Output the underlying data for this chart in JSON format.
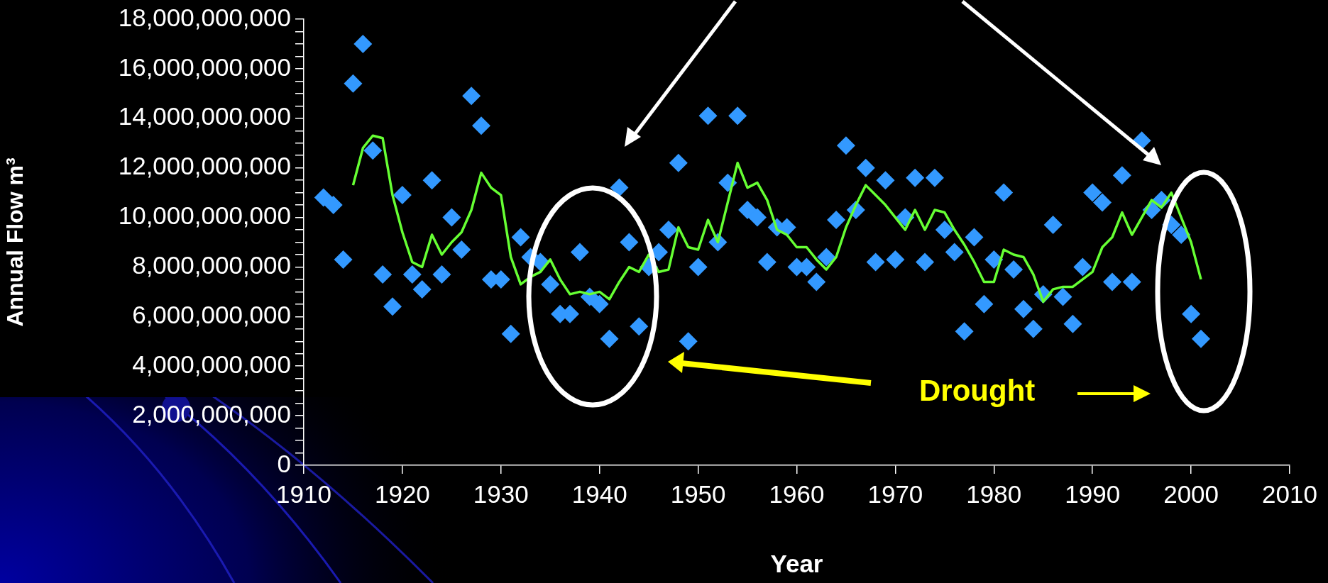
{
  "chart_data": {
    "type": "scatter",
    "xlabel": "Year",
    "ylabel": "Annual Flow m³",
    "annotations": [
      "Drought"
    ],
    "grid": false,
    "legend": false,
    "xlim": [
      1910,
      2010
    ],
    "xticks": [
      1910,
      1920,
      1930,
      1940,
      1950,
      1960,
      1970,
      1980,
      1990,
      2000,
      2010
    ],
    "ylim": [
      0,
      18000000000
    ],
    "yticks": [
      {
        "value": 0,
        "label": "0"
      },
      {
        "value": 500000000,
        "label": null
      },
      {
        "value": 1000000000,
        "label": null
      },
      {
        "value": 1500000000,
        "label": null
      },
      {
        "value": 2000000000,
        "label": "2,000,000,000"
      },
      {
        "value": 2500000000,
        "label": null
      },
      {
        "value": 3000000000,
        "label": null
      },
      {
        "value": 3500000000,
        "label": null
      },
      {
        "value": 4000000000,
        "label": "4,000,000,000"
      },
      {
        "value": 4500000000,
        "label": null
      },
      {
        "value": 5000000000,
        "label": null
      },
      {
        "value": 5500000000,
        "label": null
      },
      {
        "value": 6000000000,
        "label": "6,000,000,000"
      },
      {
        "value": 6500000000,
        "label": null
      },
      {
        "value": 7000000000,
        "label": null
      },
      {
        "value": 7500000000,
        "label": null
      },
      {
        "value": 8000000000,
        "label": "8,000,000,000"
      },
      {
        "value": 8500000000,
        "label": null
      },
      {
        "value": 9000000000,
        "label": null
      },
      {
        "value": 9500000000,
        "label": null
      },
      {
        "value": 10000000000,
        "label": "10,000,000,000"
      },
      {
        "value": 10500000000,
        "label": null
      },
      {
        "value": 11000000000,
        "label": null
      },
      {
        "value": 11500000000,
        "label": null
      },
      {
        "value": 12000000000,
        "label": "12,000,000,000"
      },
      {
        "value": 12500000000,
        "label": null
      },
      {
        "value": 13000000000,
        "label": null
      },
      {
        "value": 13500000000,
        "label": null
      },
      {
        "value": 14000000000,
        "label": "14,000,000,000"
      },
      {
        "value": 14500000000,
        "label": null
      },
      {
        "value": 15000000000,
        "label": null
      },
      {
        "value": 15500000000,
        "label": null
      },
      {
        "value": 16000000000,
        "label": "16,000,000,000"
      },
      {
        "value": 16500000000,
        "label": null
      },
      {
        "value": 17000000000,
        "label": null
      },
      {
        "value": 17500000000,
        "label": null
      },
      {
        "value": 18000000000,
        "label": "18,000,000,000"
      }
    ],
    "series": [
      {
        "type": "scatter",
        "color": "#3399ff",
        "marker": "diamond",
        "x": [
          1912,
          1913,
          1914,
          1915,
          1916,
          1917,
          1918,
          1919,
          1920,
          1921,
          1922,
          1923,
          1924,
          1925,
          1926,
          1927,
          1928,
          1929,
          1930,
          1931,
          1932,
          1933,
          1934,
          1935,
          1936,
          1937,
          1938,
          1939,
          1940,
          1941,
          1942,
          1943,
          1944,
          1945,
          1946,
          1947,
          1948,
          1949,
          1950,
          1951,
          1952,
          1953,
          1954,
          1955,
          1956,
          1957,
          1958,
          1959,
          1960,
          1961,
          1962,
          1963,
          1964,
          1965,
          1966,
          1967,
          1968,
          1969,
          1970,
          1971,
          1972,
          1973,
          1974,
          1975,
          1976,
          1977,
          1978,
          1979,
          1980,
          1981,
          1982,
          1983,
          1984,
          1985,
          1986,
          1987,
          1988,
          1989,
          1990,
          1991,
          1992,
          1993,
          1994,
          1995,
          1996,
          1997,
          1998,
          1999,
          2000,
          2001
        ],
        "values": [
          10800000000,
          10500000000,
          8300000000,
          15400000000,
          17000000000,
          12700000000,
          7700000000,
          6400000000,
          10900000000,
          7700000000,
          7100000000,
          11500000000,
          7700000000,
          10000000000,
          8700000000,
          14900000000,
          13700000000,
          7500000000,
          7500000000,
          5300000000,
          9200000000,
          8400000000,
          8200000000,
          7300000000,
          6100000000,
          6100000000,
          8600000000,
          6800000000,
          6500000000,
          5100000000,
          11200000000,
          9000000000,
          5600000000,
          8000000000,
          8600000000,
          9500000000,
          12200000000,
          5000000000,
          8000000000,
          14100000000,
          9000000000,
          11400000000,
          14100000000,
          10300000000,
          10000000000,
          8200000000,
          9600000000,
          9600000000,
          8000000000,
          8000000000,
          7400000000,
          8400000000,
          9900000000,
          12900000000,
          10300000000,
          12000000000,
          8200000000,
          11500000000,
          8300000000,
          10000000000,
          11600000000,
          8200000000,
          11600000000,
          9500000000,
          8600000000,
          5400000000,
          9200000000,
          6500000000,
          8300000000,
          11000000000,
          7900000000,
          6300000000,
          5500000000,
          6900000000,
          9700000000,
          6800000000,
          5700000000,
          8000000000,
          11000000000,
          10600000000,
          7400000000,
          11700000000,
          7400000000,
          13100000000,
          10300000000,
          10700000000,
          9700000000,
          9300000000,
          6100000000,
          5100000000
        ]
      },
      {
        "type": "line",
        "color": "#66ff33",
        "marker": "none",
        "line_style": "solid",
        "x": [
          1915,
          1916,
          1917,
          1918,
          1919,
          1920,
          1921,
          1922,
          1923,
          1924,
          1925,
          1926,
          1927,
          1928,
          1929,
          1930,
          1931,
          1932,
          1933,
          1934,
          1935,
          1936,
          1937,
          1938,
          1939,
          1940,
          1941,
          1942,
          1943,
          1944,
          1945,
          1946,
          1947,
          1948,
          1949,
          1950,
          1951,
          1952,
          1953,
          1954,
          1955,
          1956,
          1957,
          1958,
          1959,
          1960,
          1961,
          1962,
          1963,
          1964,
          1965,
          1966,
          1967,
          1968,
          1969,
          1970,
          1971,
          1972,
          1973,
          1974,
          1975,
          1976,
          1977,
          1978,
          1979,
          1980,
          1981,
          1982,
          1983,
          1984,
          1985,
          1986,
          1987,
          1988,
          1989,
          1990,
          1991,
          1992,
          1993,
          1994,
          1995,
          1996,
          1997,
          1998,
          1999,
          2000,
          2001
        ],
        "values": [
          11300000000,
          12800000000,
          13300000000,
          13200000000,
          10900000000,
          9400000000,
          8200000000,
          8000000000,
          9300000000,
          8500000000,
          9000000000,
          9400000000,
          10300000000,
          11800000000,
          11200000000,
          10900000000,
          8400000000,
          7300000000,
          7600000000,
          7800000000,
          8300000000,
          7500000000,
          6900000000,
          7000000000,
          6900000000,
          7000000000,
          6700000000,
          7400000000,
          8000000000,
          7800000000,
          8500000000,
          7800000000,
          7900000000,
          9600000000,
          8800000000,
          8700000000,
          9900000000,
          9000000000,
          10600000000,
          12200000000,
          11200000000,
          11400000000,
          10700000000,
          9500000000,
          9300000000,
          8800000000,
          8800000000,
          8300000000,
          7900000000,
          8400000000,
          9600000000,
          10500000000,
          11300000000,
          10900000000,
          10500000000,
          10000000000,
          9500000000,
          10300000000,
          9500000000,
          10300000000,
          10200000000,
          9500000000,
          8900000000,
          8200000000,
          7400000000,
          7400000000,
          8700000000,
          8500000000,
          8400000000,
          7700000000,
          6600000000,
          7100000000,
          7200000000,
          7200000000,
          7500000000,
          7800000000,
          8800000000,
          9200000000,
          10200000000,
          9300000000,
          10000000000,
          10700000000,
          10400000000,
          11000000000,
          10000000000,
          9000000000,
          7500000000
        ]
      }
    ]
  }
}
